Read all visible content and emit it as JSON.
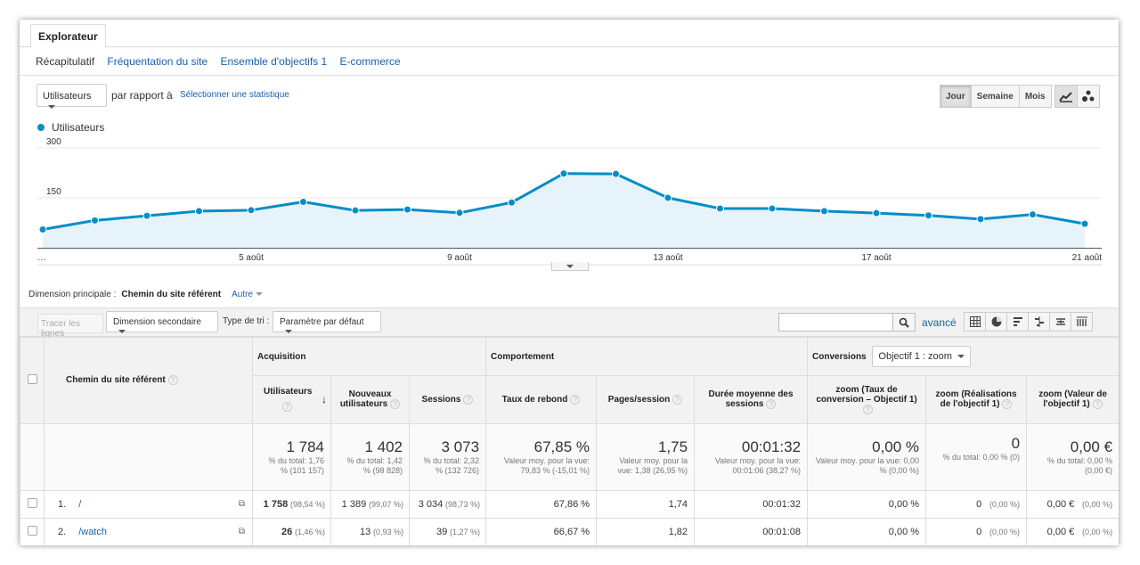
{
  "tab": "Explorateur",
  "subnav": {
    "active": "Récapitulatif",
    "links": [
      "Fréquentation du site",
      "Ensemble d'objectifs 1",
      "E-commerce"
    ]
  },
  "controls": {
    "metric": "Utilisateurs",
    "compare_label": "par rapport à",
    "select_stat": "Sélectionner une statistique",
    "periods": [
      "Jour",
      "Semaine",
      "Mois"
    ],
    "active_period": "Jour",
    "chart_types": [
      "line-chart-icon",
      "motion-chart-icon"
    ]
  },
  "chart_data": {
    "type": "area",
    "series": [
      {
        "name": "Utilisateurs",
        "values": [
          55,
          82,
          96,
          110,
          113,
          138,
          112,
          115,
          105,
          136,
          223,
          222,
          150,
          118,
          118,
          110,
          104,
          97,
          86,
          100,
          72
        ]
      }
    ],
    "ylim": [
      0,
      300
    ],
    "yticks": [
      "300",
      "150"
    ],
    "xticks": [
      {
        "i": 0,
        "label": "…"
      },
      {
        "i": 4,
        "label": "5 août"
      },
      {
        "i": 8,
        "label": "9 août"
      },
      {
        "i": 12,
        "label": "13 août"
      },
      {
        "i": 16,
        "label": "17 août"
      },
      {
        "i": 20,
        "label": "21 août"
      }
    ],
    "color": "#058dc7",
    "fill": "#e6f3fa"
  },
  "dimension": {
    "label": "Dimension principale :",
    "value": "Chemin du site référent",
    "other": "Autre"
  },
  "toolbar": {
    "plot_rows": "Tracer les lignes",
    "secondary_dim": "Dimension secondaire",
    "sort_label": "Type de tri :",
    "sort_value": "Paramètre par défaut",
    "advanced": "avancé",
    "view_icons": [
      "table-icon",
      "pie-icon",
      "bar-icon",
      "comparison-icon",
      "term-cloud-icon",
      "pivot-icon"
    ]
  },
  "table": {
    "dim_header": "Chemin du site référent",
    "groups": {
      "acq": "Acquisition",
      "beh": "Comportement",
      "conv": "Conversions"
    },
    "conv_select": "Objectif 1 : zoom",
    "columns": [
      "Utilisateurs",
      "Nouveaux utilisateurs",
      "Sessions",
      "Taux de rebond",
      "Pages/session",
      "Durée moyenne des sessions",
      "zoom (Taux de conversion – Objectif 1)",
      "zoom (Réalisations de l'objectif 1)",
      "zoom (Valeur de l'objectif 1)"
    ],
    "totals": [
      {
        "value": "1 784",
        "sub": "% du total: 1,76 % (101 157)"
      },
      {
        "value": "1 402",
        "sub": "% du total: 1,42 % (98 828)"
      },
      {
        "value": "3 073",
        "sub": "% du total: 2,32 % (132 726)"
      },
      {
        "value": "67,85 %",
        "sub": "Valeur moy. pour la vue: 79,83 % (-15,01 %)"
      },
      {
        "value": "1,75",
        "sub": "Valeur moy. pour la vue: 1,38 (26,95 %)"
      },
      {
        "value": "00:01:32",
        "sub": "Valeur moy. pour la vue: 00:01:06 (38,27 %)"
      },
      {
        "value": "0,00 %",
        "sub": "Valeur moy. pour la vue: 0,00 % (0,00 %)"
      },
      {
        "value": "0",
        "sub": "% du total: 0,00 % (0)"
      },
      {
        "value": "0,00 €",
        "sub": "% du total: 0,00 % (0,00 €)"
      }
    ],
    "rows": [
      {
        "idx": "1.",
        "path": "/",
        "cells": [
          {
            "v": "1 758",
            "p": "(98,54 %)"
          },
          {
            "v": "1 389",
            "p": "(99,07 %)"
          },
          {
            "v": "3 034",
            "p": "(98,73 %)"
          },
          {
            "v": "67,86 %",
            "p": ""
          },
          {
            "v": "1,74",
            "p": ""
          },
          {
            "v": "00:01:32",
            "p": ""
          },
          {
            "v": "0,00 %",
            "p": ""
          },
          {
            "v": "0",
            "p": "(0,00 %)"
          },
          {
            "v": "0,00 €",
            "p": "(0,00 %)"
          }
        ]
      },
      {
        "idx": "2.",
        "path": "/watch",
        "cells": [
          {
            "v": "26",
            "p": "(1,46 %)"
          },
          {
            "v": "13",
            "p": "(0,93 %)"
          },
          {
            "v": "39",
            "p": "(1,27 %)"
          },
          {
            "v": "66,67 %",
            "p": ""
          },
          {
            "v": "1,82",
            "p": ""
          },
          {
            "v": "00:01:08",
            "p": ""
          },
          {
            "v": "0,00 %",
            "p": ""
          },
          {
            "v": "0",
            "p": "(0,00 %)"
          },
          {
            "v": "0,00 €",
            "p": "(0,00 %)"
          }
        ]
      }
    ]
  }
}
